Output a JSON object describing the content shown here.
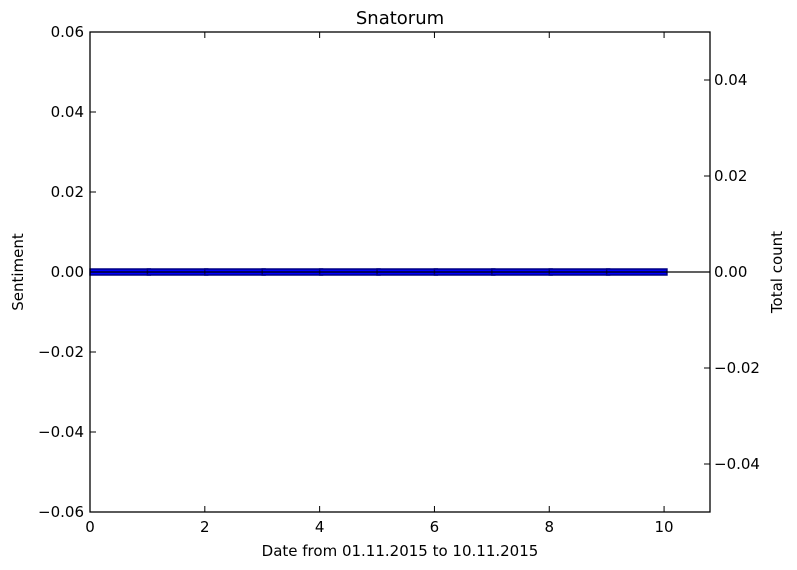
{
  "chart_data": {
    "type": "bar",
    "title": "Snatorum",
    "xlabel": "Date from 01.11.2015 to 10.11.2015",
    "ylabel_left": "Sentiment",
    "ylabel_right": "Total count",
    "xlim": [
      0,
      10.8
    ],
    "ylim_left": [
      -0.06,
      0.06
    ],
    "ylim_right": [
      -0.05,
      0.05
    ],
    "x_ticks": [
      0,
      2,
      4,
      6,
      8,
      10
    ],
    "x_tick_labels": [
      "0",
      "2",
      "4",
      "6",
      "8",
      "10"
    ],
    "y_left_ticks": [
      0.06,
      0.04,
      0.02,
      0.0,
      -0.02,
      -0.04,
      -0.06
    ],
    "y_left_tick_labels": [
      "0.06",
      "0.04",
      "0.02",
      "0.00",
      "−0.02",
      "−0.04",
      "−0.06"
    ],
    "y_right_ticks": [
      0.04,
      0.02,
      0.0,
      -0.02,
      -0.04
    ],
    "y_right_tick_labels": [
      "0.04",
      "0.02",
      "0.00",
      "−0.02",
      "−0.04"
    ],
    "grid": false,
    "series": [
      {
        "axis": "left",
        "kind": "bar",
        "x": [
          0,
          1,
          2,
          3,
          4,
          5,
          6,
          7,
          8,
          9
        ],
        "values": [
          0,
          0,
          0,
          0,
          0,
          0,
          0,
          0,
          0,
          0
        ],
        "color": "#0000ff",
        "edge_color": "#000080"
      },
      {
        "axis": "right",
        "kind": "line",
        "x": [
          0,
          10.8
        ],
        "values": [
          0,
          0
        ],
        "color": "#000000"
      }
    ]
  }
}
